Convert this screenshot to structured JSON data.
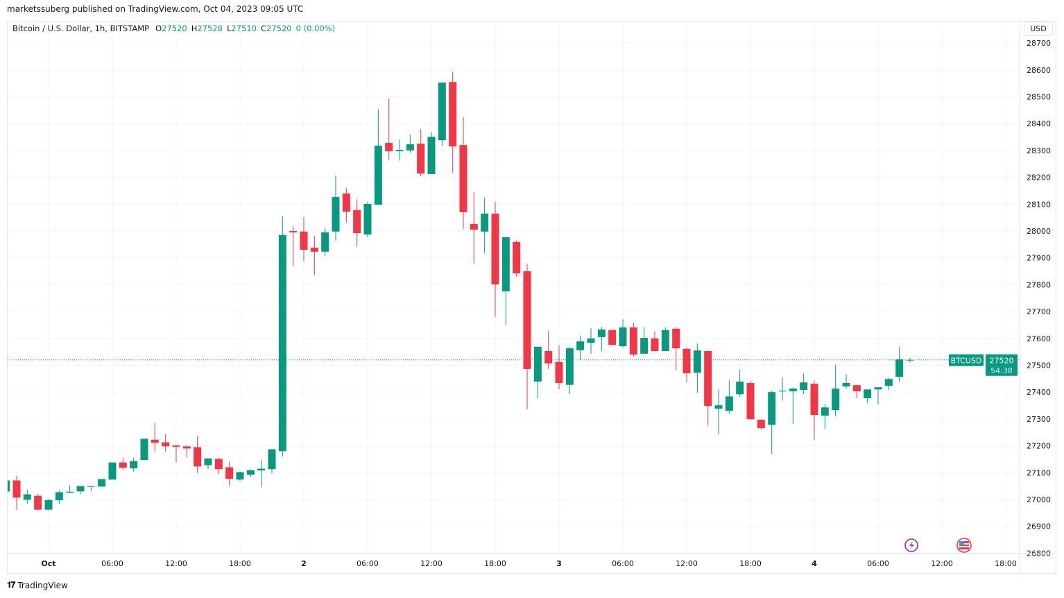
{
  "publisher_line": "marketssuberg published on TradingView.com, Oct 04, 2023 09:05 UTC",
  "legend": {
    "symbol": "Bitcoin / U.S. Dollar, 1h, BITSTAMP",
    "o_label": "O",
    "o_value": "27520",
    "h_label": "H",
    "h_value": "27528",
    "l_label": "L",
    "l_value": "27510",
    "c_label": "C",
    "c_value": "27520",
    "change": "0 (0.00%)"
  },
  "currency_button": "USD",
  "price_tag": {
    "symbol": "BTCUSD",
    "price": "27520",
    "countdown": "54:38"
  },
  "footer": {
    "brand": "TradingView",
    "logo_icon": "tradingview-logo-icon"
  },
  "event_icons": [
    "lightning-icon",
    "us-flag-icon"
  ],
  "colors": {
    "up": "#089981",
    "down": "#f23645",
    "grid": "#f0f3fa",
    "text": "#131722",
    "lightning": "#9c27b0",
    "flag": "#f23645"
  },
  "chart_data": {
    "type": "candlestick",
    "symbol": "BTCUSD",
    "interval": "1h",
    "start": "2023-09-30 20:00",
    "columns": [
      "open",
      "high",
      "low",
      "close"
    ],
    "ohlc": [
      [
        27030,
        27075,
        27025,
        27071
      ],
      [
        27071,
        27089,
        26962,
        27007
      ],
      [
        26999,
        27037,
        26985,
        27019
      ],
      [
        27014,
        27019,
        26962,
        26962
      ],
      [
        26962,
        27001,
        26960,
        26998
      ],
      [
        26997,
        27034,
        26983,
        27027
      ],
      [
        27025,
        27053,
        27025,
        27029
      ],
      [
        27030,
        27050,
        27020,
        27050
      ],
      [
        27048,
        27050,
        27030,
        27050
      ],
      [
        27048,
        27076,
        27048,
        27076
      ],
      [
        27074,
        27138,
        27074,
        27138
      ],
      [
        27138,
        27156,
        27109,
        27118
      ],
      [
        27116,
        27156,
        27104,
        27143
      ],
      [
        27147,
        27228,
        27147,
        27226
      ],
      [
        27223,
        27285,
        27178,
        27211
      ],
      [
        27213,
        27244,
        27178,
        27198
      ],
      [
        27201,
        27205,
        27138,
        27196
      ],
      [
        27198,
        27200,
        27156,
        27190
      ],
      [
        27195,
        27236,
        27099,
        27123
      ],
      [
        27128,
        27153,
        27113,
        27153
      ],
      [
        27151,
        27156,
        27095,
        27113
      ],
      [
        27120,
        27143,
        27051,
        27077
      ],
      [
        27074,
        27104,
        27069,
        27102
      ],
      [
        27092,
        27112,
        27082,
        27109
      ],
      [
        27108,
        27148,
        27046,
        27115
      ],
      [
        27113,
        27187,
        27097,
        27187
      ],
      [
        27180,
        28055,
        27160,
        27985
      ],
      [
        28000,
        28018,
        27868,
        27995
      ],
      [
        27998,
        28052,
        27887,
        27930
      ],
      [
        27938,
        27982,
        27836,
        27923
      ],
      [
        27923,
        28013,
        27907,
        27995
      ],
      [
        27998,
        28207,
        27964,
        28127
      ],
      [
        28140,
        28160,
        28031,
        28072
      ],
      [
        28078,
        28119,
        27941,
        27992
      ],
      [
        27987,
        28109,
        27977,
        28101
      ],
      [
        28098,
        28452,
        28098,
        28318
      ],
      [
        28328,
        28493,
        28263,
        28297
      ],
      [
        28297,
        28341,
        28263,
        28302
      ],
      [
        28300,
        28359,
        28292,
        28323
      ],
      [
        28325,
        28380,
        28204,
        28214
      ],
      [
        28212,
        28369,
        28212,
        28351
      ],
      [
        28338,
        28553,
        28318,
        28553
      ],
      [
        28555,
        28594,
        28217,
        28315
      ],
      [
        28320,
        28424,
        28008,
        28070
      ],
      [
        28026,
        28145,
        27879,
        28005
      ],
      [
        27998,
        28124,
        27918,
        28065
      ],
      [
        28065,
        28109,
        27681,
        27801
      ],
      [
        27775,
        27977,
        27651,
        27977
      ],
      [
        27959,
        27964,
        27830,
        27842
      ],
      [
        27850,
        27879,
        27336,
        27486
      ],
      [
        27439,
        27569,
        27377,
        27569
      ],
      [
        27553,
        27628,
        27486,
        27507
      ],
      [
        27512,
        27574,
        27411,
        27434
      ],
      [
        27427,
        27568,
        27393,
        27563
      ],
      [
        27556,
        27610,
        27520,
        27589
      ],
      [
        27584,
        27638,
        27543,
        27600
      ],
      [
        27605,
        27643,
        27553,
        27633
      ],
      [
        27631,
        27633,
        27576,
        27576
      ],
      [
        27571,
        27672,
        27566,
        27641
      ],
      [
        27641,
        27659,
        27533,
        27540
      ],
      [
        27543,
        27643,
        27543,
        27602
      ],
      [
        27600,
        27626,
        27553,
        27553
      ],
      [
        27553,
        27641,
        27553,
        27631
      ],
      [
        27636,
        27641,
        27481,
        27563
      ],
      [
        27561,
        27566,
        27437,
        27470
      ],
      [
        27472,
        27581,
        27398,
        27555
      ],
      [
        27553,
        27553,
        27274,
        27348
      ],
      [
        27338,
        27410,
        27243,
        27351
      ],
      [
        27330,
        27444,
        27320,
        27384
      ],
      [
        27392,
        27483,
        27382,
        27439
      ],
      [
        27434,
        27441,
        27299,
        27299
      ],
      [
        27297,
        27297,
        27261,
        27266
      ],
      [
        27278,
        27405,
        27170,
        27400
      ],
      [
        27403,
        27454,
        27369,
        27405
      ],
      [
        27403,
        27416,
        27281,
        27413
      ],
      [
        27408,
        27470,
        27392,
        27436
      ],
      [
        27431,
        27444,
        27222,
        27315
      ],
      [
        27312,
        27356,
        27263,
        27343
      ],
      [
        27333,
        27501,
        27309,
        27413
      ],
      [
        27421,
        27467,
        27413,
        27434
      ],
      [
        27426,
        27426,
        27377,
        27403
      ],
      [
        27377,
        27410,
        27359,
        27410
      ],
      [
        27410,
        27418,
        27353,
        27418
      ],
      [
        27423,
        27454,
        27408,
        27449
      ],
      [
        27457,
        27568,
        27439,
        27522
      ],
      [
        27520,
        27528,
        27510,
        27520
      ]
    ],
    "last_price": 27520,
    "ylim": [
      26800,
      28700
    ],
    "y_ticks": [
      26800,
      26900,
      27000,
      27100,
      27200,
      27300,
      27400,
      27500,
      27600,
      27700,
      27800,
      27900,
      28000,
      28100,
      28200,
      28300,
      28400,
      28500,
      28600,
      28700
    ],
    "x_tick_labels": [
      "Oct",
      "06:00",
      "12:00",
      "18:00",
      "2",
      "06:00",
      "12:00",
      "18:00",
      "3",
      "06:00",
      "12:00",
      "18:00",
      "4",
      "06:00",
      "12:00",
      "18:00"
    ],
    "grid": true
  }
}
